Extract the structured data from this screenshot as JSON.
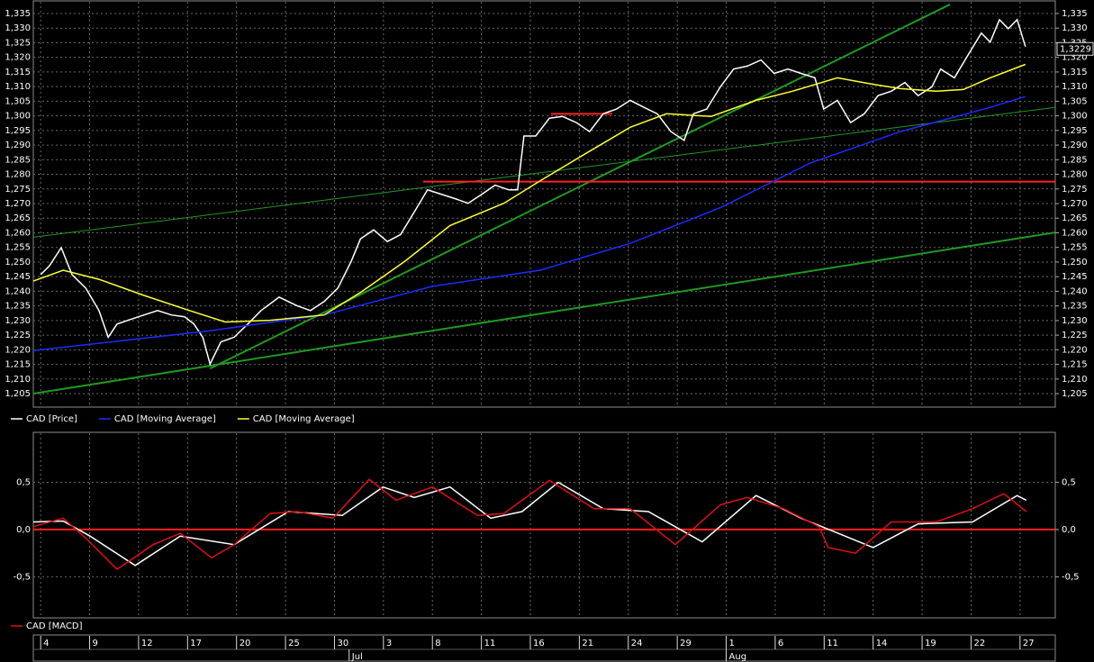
{
  "chart_data": [
    {
      "type": "line",
      "xlim": [
        -0.15,
        20.72
      ],
      "ylim": [
        1.2007,
        1.339
      ],
      "yticks": [
        {
          "value": 1.205,
          "label": "1,205"
        },
        {
          "value": 1.21,
          "label": "1,210"
        },
        {
          "value": 1.215,
          "label": "1,215"
        },
        {
          "value": 1.22,
          "label": "1,220"
        },
        {
          "value": 1.225,
          "label": "1,225"
        },
        {
          "value": 1.23,
          "label": "1,230"
        },
        {
          "value": 1.235,
          "label": "1,235"
        },
        {
          "value": 1.24,
          "label": "1,240"
        },
        {
          "value": 1.245,
          "label": "1,245"
        },
        {
          "value": 1.25,
          "label": "1,250"
        },
        {
          "value": 1.255,
          "label": "1,255"
        },
        {
          "value": 1.26,
          "label": "1,260"
        },
        {
          "value": 1.265,
          "label": "1,265"
        },
        {
          "value": 1.27,
          "label": "1,270"
        },
        {
          "value": 1.275,
          "label": "1,275"
        },
        {
          "value": 1.28,
          "label": "1,280"
        },
        {
          "value": 1.285,
          "label": "1,285"
        },
        {
          "value": 1.29,
          "label": "1,290"
        },
        {
          "value": 1.295,
          "label": "1,295"
        },
        {
          "value": 1.3,
          "label": "1,300"
        },
        {
          "value": 1.305,
          "label": "1,305"
        },
        {
          "value": 1.31,
          "label": "1,310"
        },
        {
          "value": 1.315,
          "label": "1,315"
        },
        {
          "value": 1.32,
          "label": "1,320"
        },
        {
          "value": 1.325,
          "label": "1,325"
        },
        {
          "value": 1.33,
          "label": "1,330"
        },
        {
          "value": 1.335,
          "label": "1,335"
        }
      ],
      "grid": true,
      "series": [
        {
          "name": "CAD [Price]",
          "color": "#ffffff",
          "x": [
            0,
            0.18,
            0.42,
            0.64,
            0.92,
            1.19,
            1.38,
            1.56,
            1.84,
            2.11,
            2.39,
            2.67,
            2.94,
            3.13,
            3.31,
            3.46,
            3.68,
            3.95,
            4.23,
            4.5,
            4.87,
            5.24,
            5.51,
            5.79,
            6.07,
            6.34,
            6.53,
            6.8,
            7.08,
            7.35,
            7.63,
            7.9,
            8.18,
            8.46,
            8.73,
            9.01,
            9.28,
            9.56,
            9.74,
            9.87,
            10.11,
            10.39,
            10.66,
            10.94,
            11.21,
            11.49,
            11.76,
            12.04,
            12.32,
            12.59,
            12.87,
            13.14,
            13.33,
            13.6,
            13.88,
            14.15,
            14.43,
            14.71,
            14.98,
            15.26,
            15.53,
            15.81,
            15.99,
            16.27,
            16.54,
            16.82,
            17.1,
            17.37,
            17.65,
            17.92,
            18.2,
            18.38,
            18.66,
            18.93,
            19.21,
            19.39,
            19.58,
            19.76,
            19.94,
            20.11
          ],
          "values": [
            1.2457,
            1.2487,
            1.2549,
            1.2457,
            1.2411,
            1.2334,
            1.2243,
            1.2288,
            1.2304,
            1.2319,
            1.2334,
            1.2319,
            1.2313,
            1.2288,
            1.2243,
            1.2151,
            1.2227,
            1.2243,
            1.2288,
            1.2334,
            1.238,
            1.235,
            1.2334,
            1.2365,
            1.2411,
            1.2502,
            1.2579,
            1.261,
            1.257,
            1.2594,
            1.2671,
            1.2747,
            1.2732,
            1.2717,
            1.2701,
            1.2732,
            1.2763,
            1.2747,
            1.2747,
            1.2931,
            1.2931,
            1.2992,
            1.2998,
            1.2977,
            1.2946,
            1.3007,
            1.3023,
            1.3053,
            1.3029,
            1.3007,
            1.2946,
            1.2916,
            1.3007,
            1.3023,
            1.3099,
            1.316,
            1.317,
            1.3191,
            1.3145,
            1.316,
            1.3145,
            1.313,
            1.3023,
            1.3053,
            1.2977,
            1.3007,
            1.3069,
            1.3084,
            1.3114,
            1.3069,
            1.3099,
            1.316,
            1.313,
            1.3206,
            1.3283,
            1.3252,
            1.3329,
            1.3298,
            1.3329,
            1.3237
          ]
        },
        {
          "name": "CAD [Moving Average]",
          "color": "#1a2cff",
          "x": [
            -0.15,
            3.4,
            5.79,
            8.0,
            10.2,
            12.04,
            13.88,
            15.72,
            17.56,
            19.39,
            20.11
          ],
          "values": [
            1.2197,
            1.2264,
            1.2319,
            1.2417,
            1.2472,
            1.2564,
            1.2686,
            1.2839,
            1.2946,
            1.3029,
            1.3066
          ]
        },
        {
          "name": "CAD [Moving Average]",
          "color": "#ffff33",
          "x": [
            -0.15,
            0.46,
            1.19,
            2.11,
            3.04,
            3.77,
            4.69,
            5.79,
            6.53,
            7.44,
            8.36,
            9.46,
            10.2,
            11.12,
            12.04,
            12.78,
            13.69,
            14.61,
            15.35,
            16.27,
            17.0,
            17.56,
            18.29,
            18.84,
            19.39,
            20.11
          ],
          "values": [
            1.2435,
            1.2472,
            1.2441,
            1.2386,
            1.2334,
            1.2295,
            1.2301,
            1.2319,
            1.2396,
            1.2503,
            1.2625,
            1.2701,
            1.2778,
            1.287,
            1.2961,
            1.3007,
            1.2998,
            1.3053,
            1.3084,
            1.313,
            1.3108,
            1.3093,
            1.3084,
            1.309,
            1.313,
            1.3176
          ]
        }
      ],
      "trendlines": [
        {
          "color": "#1f9a1f",
          "width": 2,
          "x": [
            3.46,
            18.57
          ],
          "values": [
            1.2136,
            1.3381
          ]
        },
        {
          "color": "#1f9a1f",
          "width": 2,
          "x": [
            -0.15,
            20.72
          ],
          "values": [
            1.205,
            1.2601
          ]
        },
        {
          "color": "#1f9a1f",
          "width": 1,
          "x": [
            -0.15,
            20.72
          ],
          "values": [
            1.2585,
            1.3029
          ]
        },
        {
          "color": "#ff2020",
          "width": 2,
          "x": [
            7.81,
            20.72
          ],
          "values": [
            1.2775,
            1.2775
          ]
        },
        {
          "color": "#ff2020",
          "width": 2,
          "x": [
            10.42,
            11.67
          ],
          "values": [
            1.3007,
            1.3007
          ]
        }
      ],
      "last_value": {
        "value": 1.3229,
        "label": "1,3229"
      }
    },
    {
      "type": "line",
      "xlim": [
        -0.15,
        20.72
      ],
      "ylim": [
        -0.925,
        1.019
      ],
      "yticks": [
        {
          "value": -0.5,
          "label": "-0,5"
        },
        {
          "value": 0,
          "label": "0,0"
        },
        {
          "value": 0.5,
          "label": "0,5"
        }
      ],
      "grid": true,
      "zero_line": 0,
      "zero_line_color": "#ff2020",
      "xticks": [
        {
          "value": 0,
          "label": "4"
        },
        {
          "value": 1,
          "label": "9"
        },
        {
          "value": 2,
          "label": "12"
        },
        {
          "value": 3,
          "label": "17"
        },
        {
          "value": 4,
          "label": "20"
        },
        {
          "value": 5,
          "label": "25"
        },
        {
          "value": 6,
          "label": "30"
        },
        {
          "value": 7,
          "label": "3"
        },
        {
          "value": 8,
          "label": "8"
        },
        {
          "value": 9,
          "label": "11"
        },
        {
          "value": 10,
          "label": "16"
        },
        {
          "value": 11,
          "label": "21"
        },
        {
          "value": 12,
          "label": "24"
        },
        {
          "value": 13,
          "label": "29"
        },
        {
          "value": 14,
          "label": "1"
        },
        {
          "value": 15,
          "label": "6"
        },
        {
          "value": 16,
          "label": "11"
        },
        {
          "value": 17,
          "label": "14"
        },
        {
          "value": 18,
          "label": "19"
        },
        {
          "value": 19,
          "label": "22"
        },
        {
          "value": 20,
          "label": "27"
        }
      ],
      "months": [
        {
          "value": 6.3,
          "label": "Jul"
        },
        {
          "value": 14,
          "label": "Aug"
        }
      ],
      "series": [
        {
          "color": "#ffffff",
          "x": [
            -0.15,
            0.46,
            1.01,
            1.93,
            2.85,
            3.95,
            5.06,
            6.16,
            6.99,
            7.63,
            8.36,
            9.19,
            9.83,
            10.57,
            11.49,
            12.41,
            13.51,
            14.61,
            15.53,
            17.0,
            17.92,
            19.03,
            19.94,
            20.13
          ],
          "values": [
            0.08,
            0.09,
            -0.07,
            -0.38,
            -0.07,
            -0.16,
            0.19,
            0.15,
            0.45,
            0.34,
            0.45,
            0.12,
            0.19,
            0.5,
            0.22,
            0.19,
            -0.13,
            0.36,
            0.12,
            -0.19,
            0.06,
            0.08,
            0.36,
            0.31
          ]
        },
        {
          "name": "CAD [MACD]",
          "color": "#e01010",
          "x": [
            -0.15,
            0.46,
            0.92,
            1.56,
            2.3,
            2.85,
            3.49,
            3.95,
            4.69,
            5.24,
            5.97,
            6.71,
            7.26,
            8.0,
            8.92,
            9.46,
            10.39,
            11.3,
            12.04,
            12.96,
            13.88,
            14.43,
            15.17,
            15.9,
            16.08,
            16.64,
            17.37,
            18.29,
            19.03,
            19.67,
            20.13
          ],
          "values": [
            0.03,
            0.12,
            -0.09,
            -0.42,
            -0.16,
            -0.04,
            -0.3,
            -0.16,
            0.17,
            0.19,
            0.12,
            0.53,
            0.31,
            0.45,
            0.15,
            0.17,
            0.52,
            0.22,
            0.22,
            -0.16,
            0.26,
            0.34,
            0.22,
            0.03,
            -0.19,
            -0.25,
            0.08,
            0.08,
            0.22,
            0.38,
            0.19
          ]
        }
      ]
    }
  ]
}
